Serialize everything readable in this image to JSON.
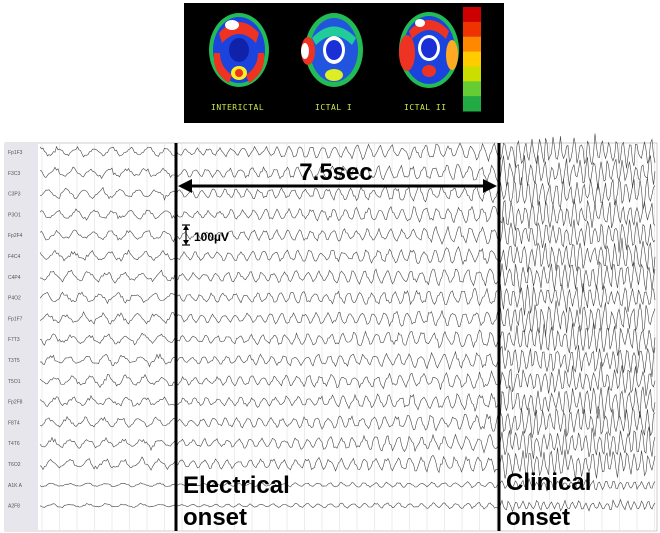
{
  "scans": [
    {
      "label": "INTERICTAL"
    },
    {
      "label": "ICTAL I"
    },
    {
      "label": "ICTAL II"
    }
  ],
  "colorbar": [
    "#cc0000",
    "#ee3300",
    "#ff8800",
    "#ffcc00",
    "#ccdd00",
    "#66cc33",
    "#22aa44"
  ],
  "channels": [
    "Fp1F3",
    "F3C3",
    "C3P3",
    "P3O1",
    "Fp2F4",
    "F4C4",
    "C4P4",
    "P4O2",
    "Fp1F7",
    "F7T3",
    "T3T5",
    "T5O1",
    "Fp2F8",
    "F8T4",
    "T4T6",
    "T6O2",
    "A1K A",
    "A2F8"
  ],
  "annotations": {
    "duration": "7.5sec",
    "scale": "100µV",
    "electrical_line1": "Electrical",
    "electrical_line2": "onset",
    "clinical_line1": "Clinical",
    "clinical_line2": "onset"
  },
  "colors": {
    "trace": "#444444",
    "marker": "#000000",
    "grid": "#d8d8d8",
    "label_bg": "#e6e6ec"
  }
}
